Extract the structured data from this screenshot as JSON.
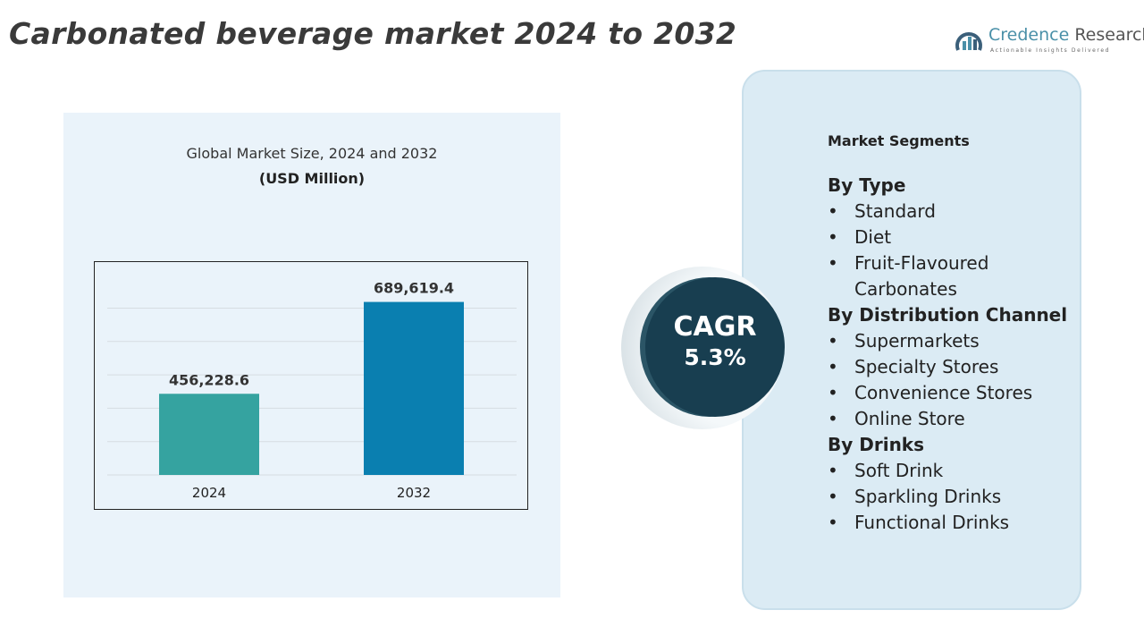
{
  "title": "Carbonated beverage market 2024 to 2032",
  "logo": {
    "name_part1": "Credence",
    "name_part2": " Research",
    "tagline": "Actionable Insights Delivered"
  },
  "chart_data": {
    "type": "bar",
    "title": "Global Market Size, 2024 and 2032",
    "subtitle": "(USD Million)",
    "categories": [
      "2024",
      "2032"
    ],
    "values": [
      456228.6,
      689619.4
    ],
    "data_labels": [
      "456,228.6",
      "689,619.4"
    ],
    "colors": [
      "#35a3a0",
      "#0a7fb0"
    ],
    "ylim": [
      250000,
      750000
    ],
    "grid": true
  },
  "cagr": {
    "label": "CAGR",
    "value": "5.3%"
  },
  "segments": {
    "heading": "Market Segments",
    "groups": [
      {
        "label": "By Type",
        "items": [
          "Standard",
          "Diet",
          "Fruit-Flavoured Carbonates"
        ]
      },
      {
        "label": "By Distribution Channel",
        "items": [
          "Supermarkets",
          "Specialty Stores",
          "Convenience Stores",
          "Online Store"
        ]
      },
      {
        "label": "By Drinks",
        "items": [
          "Soft Drink",
          "Sparkling Drinks",
          "Functional Drinks"
        ]
      }
    ]
  }
}
